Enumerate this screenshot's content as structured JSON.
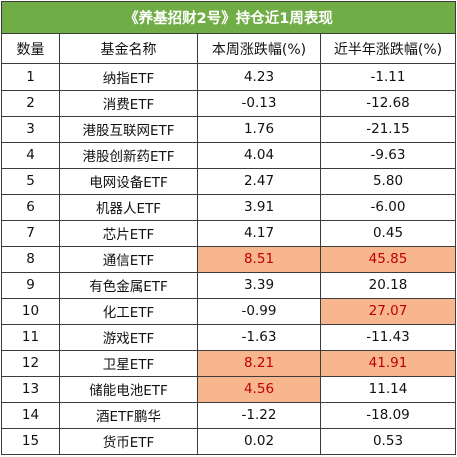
{
  "title": "《养基招财2号》持仓近1周表现",
  "headers": [
    "数量",
    "基金名称",
    "本周涨跌幅(%)",
    "近半年涨跌幅(%)"
  ],
  "highlight_colors": {
    "fill": "#f8b68f",
    "text": "#c00000",
    "title_bg": "#70ad47"
  },
  "rows": [
    {
      "num": "1",
      "name": "纳指ETF",
      "week": "4.23",
      "half": "-1.11",
      "week_hl": false,
      "half_hl": false
    },
    {
      "num": "2",
      "name": "消费ETF",
      "week": "-0.13",
      "half": "-12.68",
      "week_hl": false,
      "half_hl": false
    },
    {
      "num": "3",
      "name": "港股互联网ETF",
      "week": "1.76",
      "half": "-21.15",
      "week_hl": false,
      "half_hl": false
    },
    {
      "num": "4",
      "name": "港股创新药ETF",
      "week": "4.04",
      "half": "-9.63",
      "week_hl": false,
      "half_hl": false
    },
    {
      "num": "5",
      "name": "电网设备ETF",
      "week": "2.47",
      "half": "5.80",
      "week_hl": false,
      "half_hl": false
    },
    {
      "num": "6",
      "name": "机器人ETF",
      "week": "3.91",
      "half": "-6.00",
      "week_hl": false,
      "half_hl": false
    },
    {
      "num": "7",
      "name": "芯片ETF",
      "week": "4.17",
      "half": "0.45",
      "week_hl": false,
      "half_hl": false
    },
    {
      "num": "8",
      "name": "通信ETF",
      "week": "8.51",
      "half": "45.85",
      "week_hl": true,
      "half_hl": true
    },
    {
      "num": "9",
      "name": "有色金属ETF",
      "week": "3.39",
      "half": "20.18",
      "week_hl": false,
      "half_hl": false
    },
    {
      "num": "10",
      "name": "化工ETF",
      "week": "-0.99",
      "half": "27.07",
      "week_hl": false,
      "half_hl": true
    },
    {
      "num": "11",
      "name": "游戏ETF",
      "week": "-1.63",
      "half": "-11.43",
      "week_hl": false,
      "half_hl": false
    },
    {
      "num": "12",
      "name": "卫星ETF",
      "week": "8.21",
      "half": "41.91",
      "week_hl": true,
      "half_hl": true
    },
    {
      "num": "13",
      "name": "储能电池ETF",
      "week": "4.56",
      "half": "11.14",
      "week_hl": true,
      "half_hl": false
    },
    {
      "num": "14",
      "name": "酒ETF鹏华",
      "week": "-1.22",
      "half": "-18.09",
      "week_hl": false,
      "half_hl": false
    },
    {
      "num": "15",
      "name": "货币ETF",
      "week": "0.02",
      "half": "0.53",
      "week_hl": false,
      "half_hl": false
    }
  ]
}
